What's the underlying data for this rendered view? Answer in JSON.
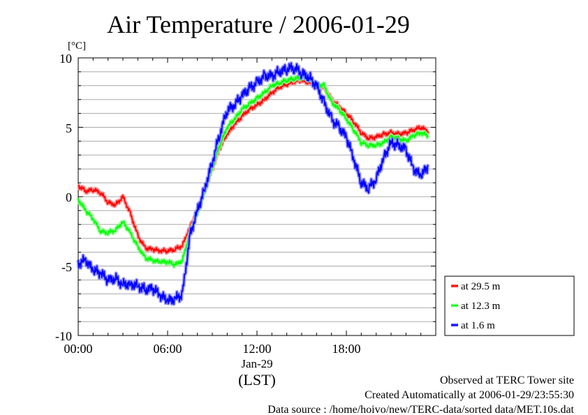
{
  "chart_data": {
    "type": "line",
    "title": "Air Temperature / 2006-01-29",
    "y_unit": "[°C]",
    "ylim": [
      -10,
      10
    ],
    "y_ticks": [
      "10",
      "5",
      "0",
      "-5",
      "-10"
    ],
    "xlim": [
      0,
      24
    ],
    "x_ticks": [
      "00:00",
      "06:00",
      "12:00",
      "18:00"
    ],
    "x_date_label": "Jan-29",
    "x_axis_label": "(LST)",
    "grid": "horizontal",
    "legend_position": "right",
    "series": [
      {
        "name": "at 29.5 m",
        "color": "#ff0000",
        "x": [
          0,
          0.5,
          1,
          1.5,
          2,
          2.5,
          3,
          3.5,
          4,
          4.5,
          5,
          5.5,
          6,
          6.5,
          7,
          7.5,
          8,
          8.5,
          9,
          9.5,
          10,
          10.5,
          11,
          11.5,
          12,
          12.5,
          13,
          13.5,
          14,
          14.5,
          15,
          15.5,
          16,
          16.5,
          17,
          17.5,
          18,
          18.5,
          19,
          19.5,
          20,
          20.5,
          21,
          21.5,
          22,
          22.5,
          23,
          23.5
        ],
        "y": [
          0.8,
          0.4,
          0.5,
          0.3,
          -0.4,
          -0.6,
          0.0,
          -1.2,
          -2.8,
          -3.7,
          -3.8,
          -3.9,
          -3.9,
          -3.8,
          -3.5,
          -2.2,
          -1.0,
          0.5,
          2.0,
          3.5,
          4.5,
          5.2,
          5.8,
          6.3,
          6.6,
          7.0,
          7.5,
          7.9,
          8.1,
          8.3,
          8.4,
          8.2,
          8.0,
          7.9,
          7.0,
          6.5,
          6.0,
          5.4,
          4.6,
          4.2,
          4.3,
          4.5,
          4.6,
          4.5,
          4.6,
          4.8,
          5.0,
          4.7
        ]
      },
      {
        "name": "at 12.3 m",
        "color": "#00ff00",
        "x": [
          0,
          0.5,
          1,
          1.5,
          2,
          2.5,
          3,
          3.5,
          4,
          4.5,
          5,
          5.5,
          6,
          6.5,
          7,
          7.5,
          8,
          8.5,
          9,
          9.5,
          10,
          10.5,
          11,
          11.5,
          12,
          12.5,
          13,
          13.5,
          14,
          14.5,
          15,
          15.5,
          16,
          16.5,
          17,
          17.5,
          18,
          18.5,
          19,
          19.5,
          20,
          20.5,
          21,
          21.5,
          22,
          22.5,
          23,
          23.5
        ],
        "y": [
          -0.2,
          -1.0,
          -1.6,
          -2.5,
          -2.6,
          -2.4,
          -1.8,
          -2.6,
          -3.6,
          -4.4,
          -4.6,
          -4.7,
          -4.7,
          -4.9,
          -4.6,
          -2.5,
          -1.2,
          0.4,
          2.1,
          3.7,
          5.0,
          5.6,
          6.3,
          6.7,
          7.1,
          7.5,
          8.0,
          8.2,
          8.4,
          8.5,
          8.6,
          8.5,
          8.1,
          8.0,
          6.8,
          6.3,
          5.6,
          4.8,
          3.9,
          3.7,
          3.7,
          3.9,
          4.3,
          4.2,
          4.0,
          4.4,
          4.6,
          4.4
        ]
      },
      {
        "name": "at 1.6 m",
        "color": "#0000ff",
        "x": [
          0,
          0.5,
          1,
          1.5,
          2,
          2.5,
          3,
          3.5,
          4,
          4.5,
          5,
          5.5,
          6,
          6.5,
          7,
          7.5,
          8,
          8.5,
          9,
          9.5,
          10,
          10.5,
          11,
          11.5,
          12,
          12.5,
          13,
          13.5,
          14,
          14.5,
          15,
          15.5,
          16,
          16.5,
          17,
          17.5,
          18,
          18.5,
          19,
          19.5,
          20,
          20.5,
          21,
          21.5,
          22,
          22.5,
          23,
          23.5
        ],
        "y": [
          -4.8,
          -4.6,
          -5.3,
          -5.5,
          -6.0,
          -5.9,
          -6.3,
          -6.3,
          -6.4,
          -6.7,
          -6.6,
          -7.1,
          -7.5,
          -7.4,
          -7.0,
          -2.8,
          -1.0,
          0.6,
          2.5,
          4.5,
          6.2,
          6.6,
          7.3,
          7.8,
          8.2,
          8.7,
          8.7,
          9.0,
          9.2,
          9.3,
          8.9,
          8.6,
          8.0,
          6.8,
          5.6,
          5.0,
          4.3,
          2.7,
          1.0,
          0.6,
          1.3,
          2.8,
          3.9,
          3.7,
          3.4,
          2.0,
          1.5,
          2.2
        ]
      }
    ],
    "footer": [
      "Observed at TERC Tower site",
      "Created Automatically at 2006-01-29/23:55:30",
      "Data source : /home/hoivo/new/TERC-data/sorted  data/MET.10s.dat"
    ]
  }
}
